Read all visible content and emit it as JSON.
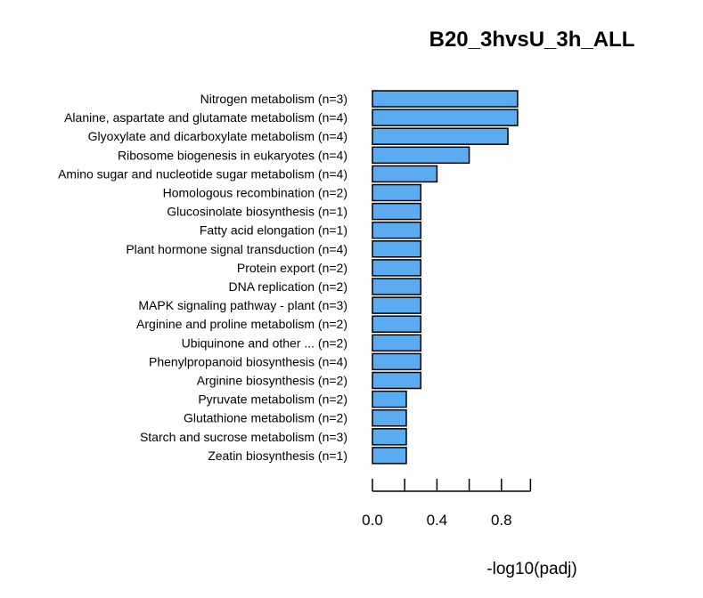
{
  "chart_data": {
    "type": "bar",
    "orientation": "horizontal",
    "title": "B20_3hvsU_3h_ALL",
    "xlabel": "-log10(padj)",
    "ylabel": "",
    "xlim": [
      0,
      0.98
    ],
    "xticks": [
      0.0,
      0.2,
      0.4,
      0.6,
      0.8,
      0.98
    ],
    "xtick_labels": [
      "0.0",
      "",
      "0.4",
      "",
      "0.8",
      ""
    ],
    "grid": false,
    "legend": "none",
    "bar_color": "#5aabf0",
    "categories": [
      "Nitrogen metabolism (n=3)",
      "Alanine, aspartate and glutamate metabolism (n=4)",
      "Glyoxylate and dicarboxylate metabolism (n=4)",
      "Ribosome biogenesis in eukaryotes (n=4)",
      "Amino sugar and nucleotide sugar metabolism (n=4)",
      "Homologous recombination (n=2)",
      "Glucosinolate biosynthesis (n=1)",
      "Fatty acid elongation (n=1)",
      "Plant hormone signal transduction (n=4)",
      "Protein export (n=2)",
      "DNA replication (n=2)",
      "MAPK signaling pathway - plant (n=3)",
      "Arginine and proline metabolism (n=2)",
      "Ubiquinone and other ... (n=2)",
      "Phenylpropanoid biosynthesis (n=4)",
      "Arginine biosynthesis (n=2)",
      "Pyruvate metabolism (n=2)",
      "Glutathione metabolism (n=2)",
      "Starch and sucrose metabolism (n=3)",
      "Zeatin biosynthesis (n=1)"
    ],
    "values": [
      0.9,
      0.9,
      0.84,
      0.6,
      0.4,
      0.3,
      0.3,
      0.3,
      0.3,
      0.3,
      0.3,
      0.3,
      0.3,
      0.3,
      0.3,
      0.3,
      0.21,
      0.21,
      0.21,
      0.21
    ]
  }
}
